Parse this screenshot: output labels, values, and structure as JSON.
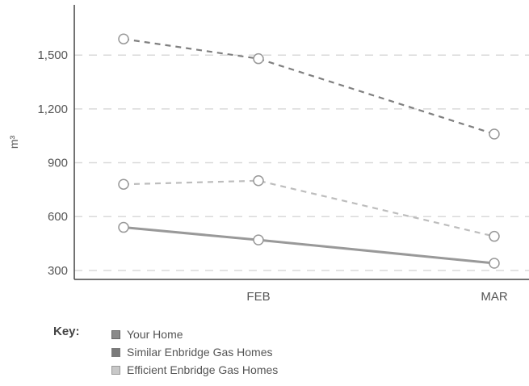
{
  "chart_data": {
    "type": "line",
    "categories": [
      "",
      "FEB",
      "MAR"
    ],
    "ylabel": "m³",
    "ylim": [
      250,
      1780
    ],
    "yticks": [
      300,
      600,
      900,
      1200,
      1500
    ],
    "ytick_labels": [
      "300",
      "600",
      "900",
      "1,200",
      "1,500"
    ],
    "grid": true,
    "series": [
      {
        "name": "Your Home",
        "values": [
          540,
          470,
          340
        ],
        "color": "#999999",
        "style": "solid"
      },
      {
        "name": "Similar Enbridge Gas Homes",
        "values": [
          1590,
          1480,
          1060
        ],
        "color": "#808080",
        "style": "dashed"
      },
      {
        "name": "Efficient Enbridge Gas Homes",
        "values": [
          780,
          800,
          490
        ],
        "color": "#bdbdbd",
        "style": "dashed"
      }
    ]
  },
  "legend": {
    "key_label": "Key:",
    "items": [
      {
        "label": "Your Home"
      },
      {
        "label": "Similar Enbridge Gas Homes"
      },
      {
        "label": "Efficient Enbridge Gas Homes"
      }
    ]
  }
}
